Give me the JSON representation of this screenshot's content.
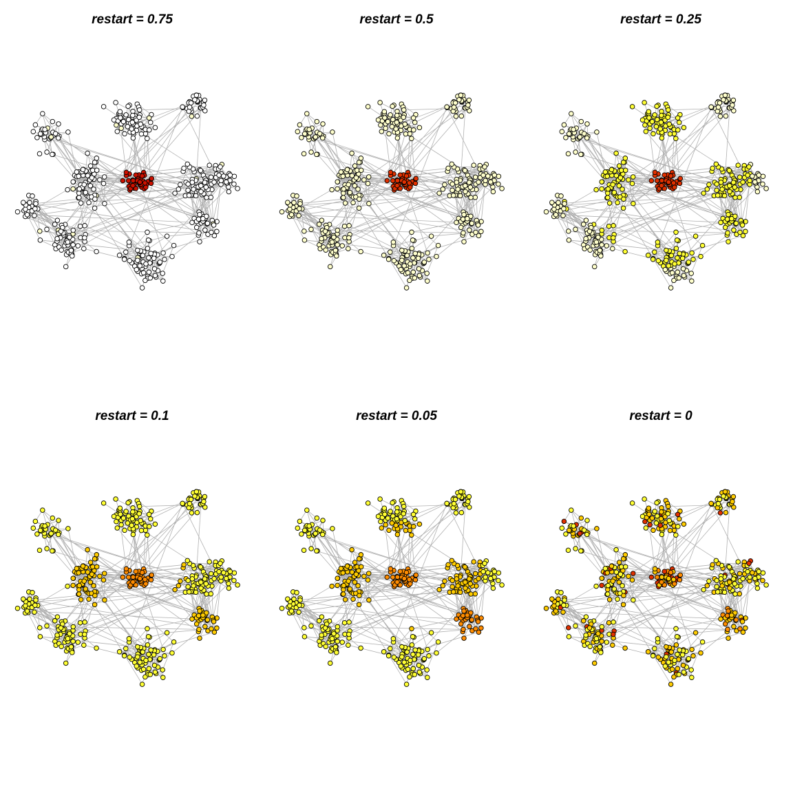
{
  "figure": {
    "panels": [
      {
        "title": "restart = 0.75",
        "restart": 0.75
      },
      {
        "title": "restart = 0.5",
        "restart": 0.5
      },
      {
        "title": "restart = 0.25",
        "restart": 0.25
      },
      {
        "title": "restart = 0.1",
        "restart": 0.1
      },
      {
        "title": "restart = 0.05",
        "restart": 0.05
      },
      {
        "title": "restart = 0",
        "restart": 0
      }
    ]
  },
  "colors": {
    "background": "#ffffff",
    "edge": "#b0b0b0",
    "node_stroke": "#000000",
    "heat_scale": [
      "#ffffff",
      "#ffffcc",
      "#ffff33",
      "#ffcc00",
      "#ff8c00",
      "#e03000",
      "#cc1100"
    ]
  }
}
